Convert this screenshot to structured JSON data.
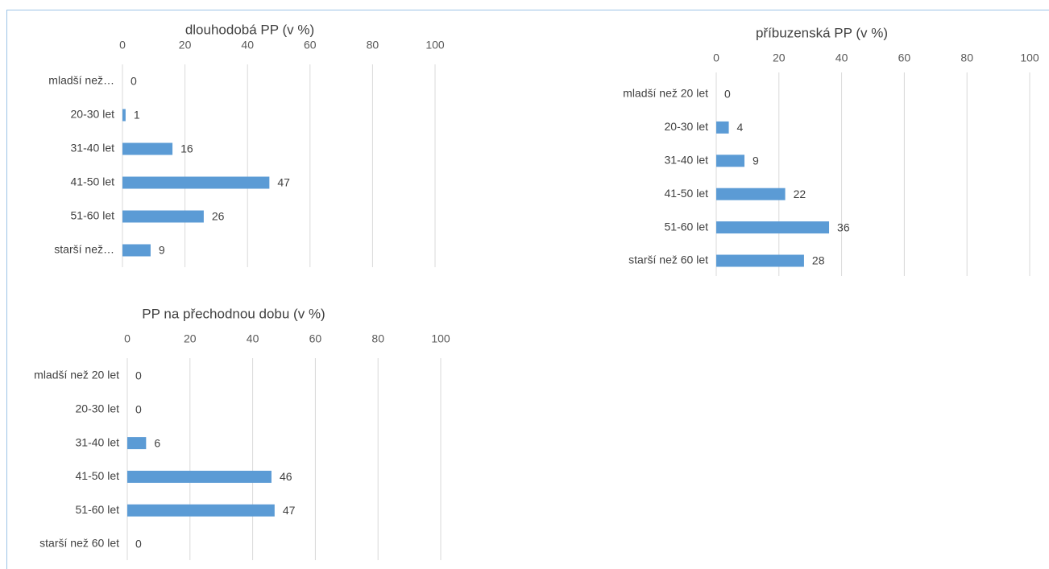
{
  "chart_data": [
    {
      "type": "bar",
      "orientation": "horizontal",
      "title": "dlouhodobá PP (v %)",
      "categories": [
        "mladší než…",
        "20-30 let",
        "31-40 let",
        "41-50 let",
        "51-60 let",
        "starší než…"
      ],
      "values": [
        0,
        1,
        16,
        47,
        26,
        9
      ],
      "color": "#5b9bd5",
      "xlim": [
        0,
        100
      ],
      "xticks": [
        0,
        20,
        40,
        60,
        80,
        100
      ],
      "grid": true
    },
    {
      "type": "bar",
      "orientation": "horizontal",
      "title": "příbuzenská PP (v %)",
      "categories": [
        "mladší než 20 let",
        "20-30 let",
        "31-40 let",
        "41-50 let",
        "51-60 let",
        "starší než 60 let"
      ],
      "values": [
        0,
        4,
        9,
        22,
        36,
        28
      ],
      "color": "#5b9bd5",
      "xlim": [
        0,
        100
      ],
      "xticks": [
        0,
        20,
        40,
        60,
        80,
        100
      ],
      "grid": true
    },
    {
      "type": "bar",
      "orientation": "horizontal",
      "title": "PP na přechodnou dobu (v %)",
      "categories": [
        "mladší než 20 let",
        "20-30 let",
        "31-40 let",
        "41-50 let",
        "51-60 let",
        "starší než 60 let"
      ],
      "values": [
        0,
        0,
        6,
        46,
        47,
        0
      ],
      "color": "#5b9bd5",
      "xlim": [
        0,
        100
      ],
      "xticks": [
        0,
        20,
        40,
        60,
        80,
        100
      ],
      "grid": true
    }
  ]
}
